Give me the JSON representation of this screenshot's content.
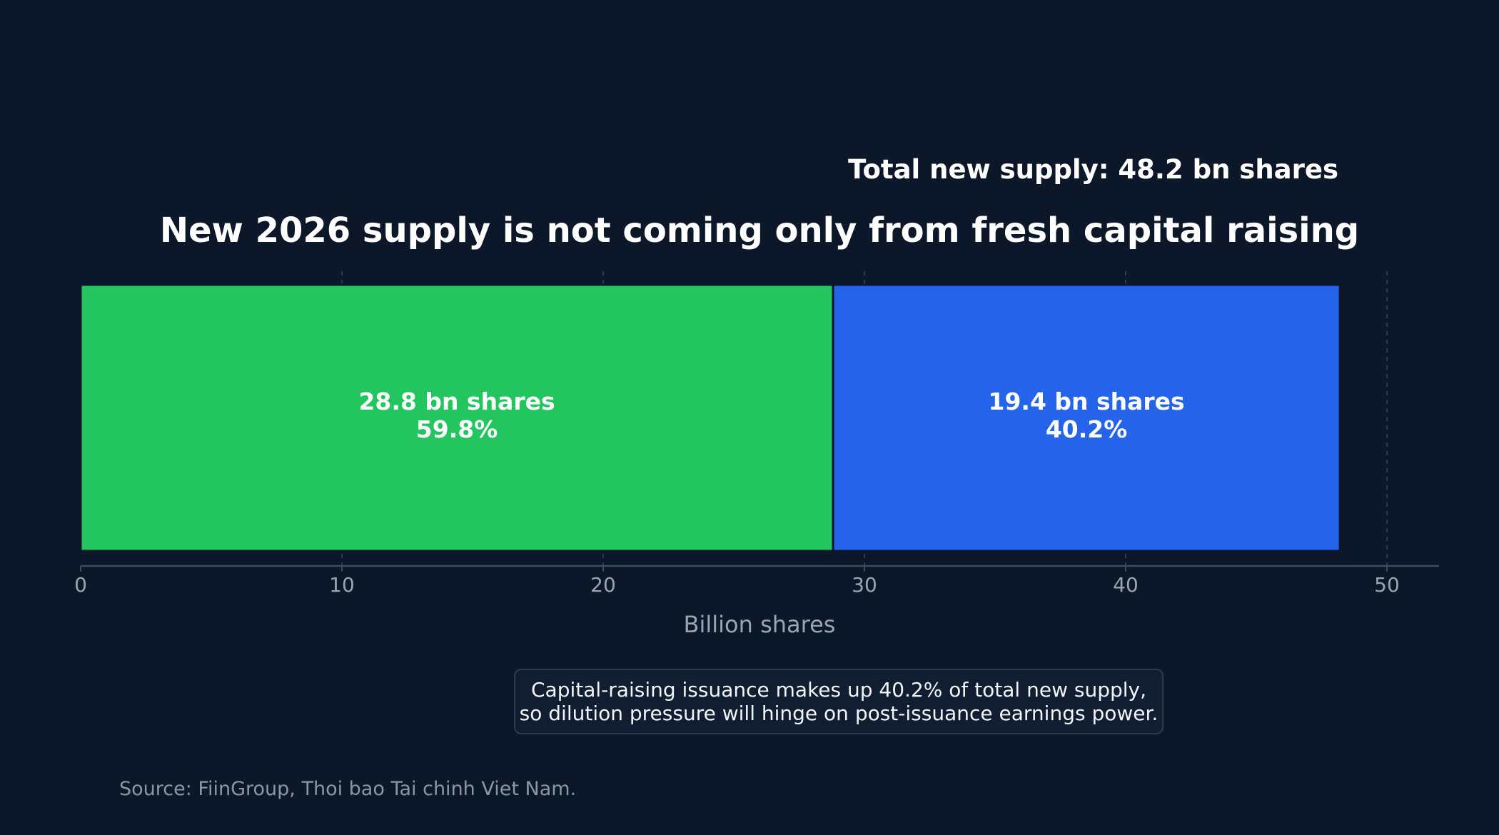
{
  "chart_data": {
    "type": "bar",
    "orientation": "horizontal",
    "stacked": true,
    "title": "New 2026 supply is not coming only from fresh capital raising",
    "total_label": "Total new supply: 48.2 bn shares",
    "xlabel": "Billion shares",
    "ylabel": "",
    "xlim": [
      0,
      52
    ],
    "x_ticks": [
      0,
      10,
      20,
      30,
      40,
      50
    ],
    "grid": "vertical dashed",
    "segments": [
      {
        "value": 28.8,
        "label_line1": "28.8 bn shares",
        "label_line2": "59.8%",
        "color": "#22c55e"
      },
      {
        "value": 19.4,
        "label_line1": "19.4 bn shares",
        "label_line2": "40.2%",
        "color": "#2563eb"
      }
    ]
  },
  "annotation": {
    "line1": "Capital-raising issuance makes up 40.2% of total new supply,",
    "line2": "so dilution pressure will hinge on post-issuance earnings power."
  },
  "source": "Source: FiinGroup, Thoi bao Tai chinh Viet Nam.",
  "colors": {
    "background": "#0c1829",
    "grid": "#3a4658",
    "axis": "#3f4b5d",
    "tick_text": "#9aa5b4"
  }
}
